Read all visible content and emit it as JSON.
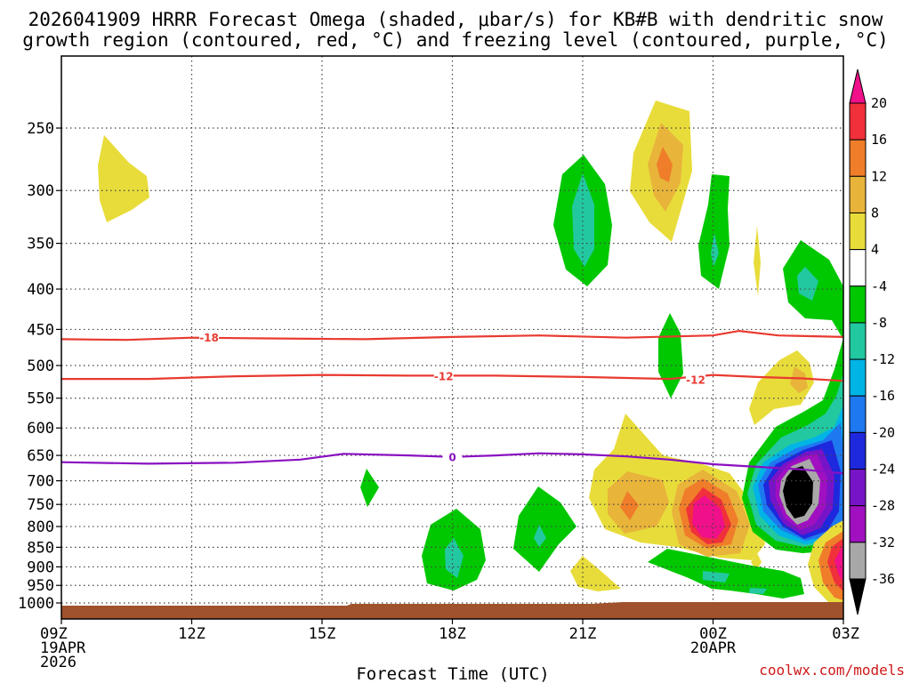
{
  "title": {
    "line1": "2026041909 HRRR Forecast Omega (shaded, μbar/s) for KB#B with dendritic snow",
    "line2": "growth region (contoured, red, °C) and freezing level (contoured, purple, °C)"
  },
  "credit": "coolwx.com/models",
  "chart_data": {
    "type": "contour",
    "title": "2026041909 HRRR Forecast Omega (shaded, μbar/s) for KB#B with dendritic snow growth region (contoured, red, °C) and freezing level (contoured, purple, °C)",
    "xlabel": "Forecast Time (UTC)",
    "ylabel": "",
    "x_range_hours_from_09Z": [
      0,
      18
    ],
    "y_range_mb": [
      1030,
      190
    ],
    "x_ticks": [
      {
        "hour": 0,
        "label": "09Z",
        "sub1": "19APR",
        "sub2": "2026"
      },
      {
        "hour": 3,
        "label": "12Z",
        "sub1": "",
        "sub2": ""
      },
      {
        "hour": 6,
        "label": "15Z",
        "sub1": "",
        "sub2": ""
      },
      {
        "hour": 9,
        "label": "18Z",
        "sub1": "",
        "sub2": ""
      },
      {
        "hour": 12,
        "label": "21Z",
        "sub1": "",
        "sub2": ""
      },
      {
        "hour": 15,
        "label": "00Z",
        "sub1": "20APR",
        "sub2": ""
      },
      {
        "hour": 18,
        "label": "03Z",
        "sub1": "",
        "sub2": ""
      }
    ],
    "y_ticks": [
      {
        "mb": 250,
        "label": "250"
      },
      {
        "mb": 300,
        "label": "300"
      },
      {
        "mb": 350,
        "label": "350"
      },
      {
        "mb": 400,
        "label": "400"
      },
      {
        "mb": 450,
        "label": "450"
      },
      {
        "mb": 500,
        "label": "500"
      },
      {
        "mb": 550,
        "label": "550"
      },
      {
        "mb": 600,
        "label": "600"
      },
      {
        "mb": 650,
        "label": "650"
      },
      {
        "mb": 700,
        "label": "700"
      },
      {
        "mb": 750,
        "label": "750"
      },
      {
        "mb": 800,
        "label": "800"
      },
      {
        "mb": 850,
        "label": "850"
      },
      {
        "mb": 900,
        "label": "900"
      },
      {
        "mb": 950,
        "label": "950"
      },
      {
        "mb": 1000,
        "label": "1000"
      }
    ],
    "grid": true,
    "colorbar": {
      "levels": [
        "20",
        "16",
        "12",
        "8",
        "4",
        "-4",
        "-8",
        "-12",
        "-16",
        "-20",
        "-24",
        "-28",
        "-32",
        "-36"
      ],
      "bands": [
        {
          "color": "#f0108a",
          "range": "> 20"
        },
        {
          "color": "#f0303a",
          "range": "16 to 20"
        },
        {
          "color": "#ef7d2a",
          "range": "12 to 16"
        },
        {
          "color": "#e8b43a",
          "range": "8 to 12"
        },
        {
          "color": "#e8dc3a",
          "range": "4 to 8"
        },
        {
          "color": "#ffffff",
          "range": "-4 to 4"
        },
        {
          "color": "#00c800",
          "range": "-8 to -4"
        },
        {
          "color": "#22c8a0",
          "range": "-12 to -8"
        },
        {
          "color": "#00b4e6",
          "range": "-16 to -12"
        },
        {
          "color": "#1e78f0",
          "range": "-20 to -16"
        },
        {
          "color": "#1e28dc",
          "range": "-24 to -20"
        },
        {
          "color": "#7814c8",
          "range": "-28 to -24"
        },
        {
          "color": "#a010c0",
          "range": "-32 to -28"
        },
        {
          "color": "#a8a8a8",
          "range": "-36 to -32"
        },
        {
          "color": "#000000",
          "range": "< -36"
        }
      ]
    },
    "contours": [
      {
        "name": "dgz-upper",
        "label": "-18",
        "color": "#e83a30",
        "points": [
          [
            0,
            463
          ],
          [
            1.5,
            464
          ],
          [
            3,
            461
          ],
          [
            5,
            462
          ],
          [
            7,
            463
          ],
          [
            9,
            460
          ],
          [
            11,
            458
          ],
          [
            13,
            461
          ],
          [
            15,
            458
          ],
          [
            15.6,
            452
          ],
          [
            16.5,
            458
          ],
          [
            18,
            460
          ]
        ],
        "label_positions": [
          [
            3.4,
            461
          ]
        ]
      },
      {
        "name": "dgz-lower",
        "label": "-12",
        "color": "#e83a30",
        "points": [
          [
            0,
            520
          ],
          [
            2,
            520
          ],
          [
            4,
            516
          ],
          [
            6,
            514
          ],
          [
            8,
            515
          ],
          [
            10,
            515
          ],
          [
            12,
            517
          ],
          [
            14,
            520
          ],
          [
            15,
            514
          ],
          [
            16,
            517
          ],
          [
            17,
            519
          ],
          [
            18,
            523
          ]
        ],
        "label_positions": [
          [
            8.8,
            516
          ],
          [
            14.6,
            521
          ]
        ]
      },
      {
        "name": "freezing-level",
        "label": "0",
        "color": "#8a10c0",
        "points": [
          [
            0,
            663
          ],
          [
            2,
            666
          ],
          [
            4,
            664
          ],
          [
            5.5,
            658
          ],
          [
            6.5,
            647
          ],
          [
            8,
            650
          ],
          [
            9,
            653
          ],
          [
            10,
            650
          ],
          [
            11,
            646
          ],
          [
            12,
            648
          ],
          [
            13,
            652
          ],
          [
            14,
            658
          ],
          [
            15,
            667
          ],
          [
            16,
            672
          ],
          [
            17,
            677
          ],
          [
            18,
            685
          ]
        ],
        "label_positions": [
          [
            9,
            653
          ]
        ]
      }
    ],
    "omega_features": [
      {
        "name": "upper-positive",
        "level": "4 to 8",
        "center_hour": 1.1,
        "center_mb": 290
      },
      {
        "name": "upper-negative-21z",
        "level": "-4 to -12",
        "center_hour": 12,
        "center_mb": 330
      },
      {
        "name": "upper-positive-2250z",
        "level": "4 to 16",
        "center_hour": 14.2,
        "center_mb": 280
      },
      {
        "name": "low-negative-18z",
        "level": "-4 to -12",
        "center_hour": 9,
        "center_mb": 880
      },
      {
        "name": "low-positive-2230z",
        "level": "4 to 16",
        "center_hour": 13.4,
        "center_mb": 740
      },
      {
        "name": "low-positive-00z",
        "level": "4 to >20",
        "center_hour": 14.8,
        "center_mb": 780
      },
      {
        "name": "deep-negative-0130z",
        "level": "-4 to <-36",
        "center_hour": 17,
        "center_mb": 700
      },
      {
        "name": "low-positive-03z",
        "level": "4 to >20",
        "center_hour": 18,
        "center_mb": 890
      }
    ],
    "surface": {
      "color": "#a0522d",
      "top_mb_approx": 1012
    }
  }
}
